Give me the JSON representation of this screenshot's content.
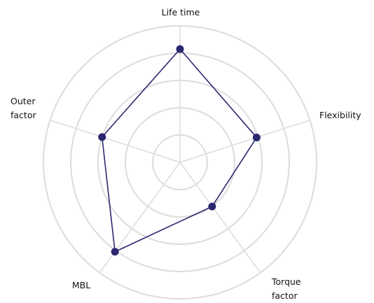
{
  "chart_data": {
    "type": "radar",
    "categories": [
      "Life time",
      "Flexibility",
      "Torque factor",
      "MBL",
      "Outer factor"
    ],
    "series": [
      {
        "color": "#2b2870",
        "values": [
          83,
          59,
          40,
          81,
          60
        ]
      }
    ],
    "ylim": [
      0,
      100
    ],
    "yticks": [
      0,
      20,
      40,
      60,
      80,
      100
    ],
    "grid": true
  }
}
